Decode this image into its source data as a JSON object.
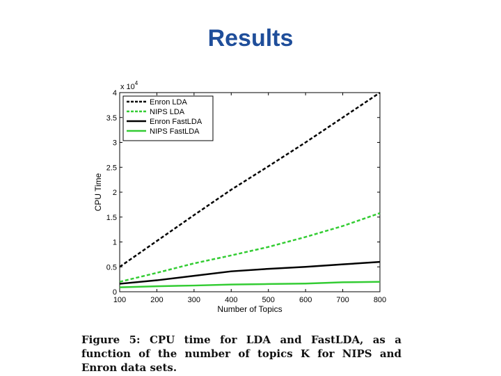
{
  "slide": {
    "title": "Results"
  },
  "chart_data": {
    "type": "line",
    "title": "",
    "xlabel": "Number of Topics",
    "ylabel": "CPU Time",
    "y_multiplier_label": {
      "base": "x 10",
      "exponent": "4"
    },
    "xlim": [
      100,
      800
    ],
    "ylim": [
      0,
      40000
    ],
    "x_ticks": [
      100,
      200,
      300,
      400,
      500,
      600,
      700,
      800
    ],
    "y_ticks": [
      0,
      5000,
      10000,
      15000,
      20000,
      25000,
      30000,
      35000,
      40000
    ],
    "y_tick_labels": [
      "0",
      "0.5",
      "1",
      "1.5",
      "2",
      "2.5",
      "3",
      "3.5",
      "4"
    ],
    "legend_position": "top-left",
    "x": [
      100,
      200,
      300,
      400,
      500,
      600,
      700,
      800
    ],
    "series": [
      {
        "name": "Enron LDA",
        "color": "#000000",
        "style": "dashed",
        "values": [
          5000,
          10200,
          15400,
          20500,
          25200,
          30000,
          35000,
          40000
        ]
      },
      {
        "name": "NIPS LDA",
        "color": "#33cc33",
        "style": "dashed",
        "values": [
          2000,
          3800,
          5700,
          7300,
          9000,
          11000,
          13200,
          15800
        ]
      },
      {
        "name": "Enron FastLDA",
        "color": "#000000",
        "style": "solid",
        "values": [
          1600,
          2300,
          3200,
          4100,
          4600,
          5000,
          5500,
          6000
        ]
      },
      {
        "name": "NIPS FastLDA",
        "color": "#33cc33",
        "style": "solid",
        "values": [
          900,
          1100,
          1250,
          1450,
          1550,
          1650,
          1900,
          2000
        ]
      }
    ]
  },
  "caption": {
    "text": "Figure 5: CPU time for LDA and FastLDA, as a function of the number of topics K for NIPS and Enron data sets."
  }
}
